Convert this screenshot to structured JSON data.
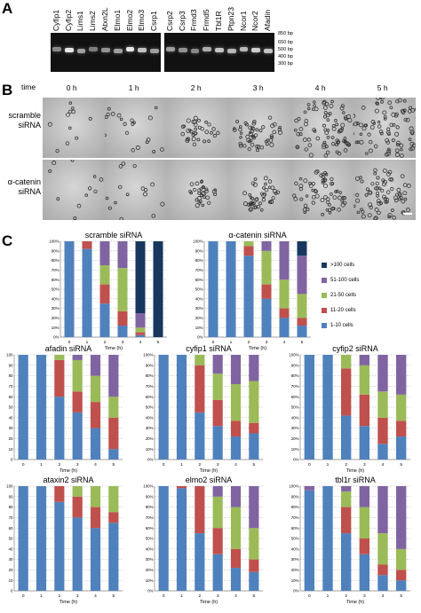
{
  "panels": {
    "a": "A",
    "b": "B",
    "c": "C"
  },
  "gel": {
    "lanes_left": [
      "Cyfip1",
      "Cyfip2",
      "Lims1",
      "Lims2",
      "Atxn2L",
      "Elmo1",
      "Elmo2",
      "Elmo3",
      "Csrp1"
    ],
    "lanes_right": [
      "Csrp2",
      "Csrp3",
      "Frmd3",
      "Frmd5",
      "Tbl1R",
      "Ptpn23",
      "Ncor1",
      "Ncor2",
      "Afadin"
    ],
    "band_intensity_left": [
      0.5,
      0.9,
      0.6,
      0.45,
      0.55,
      0.6,
      0.9,
      0.75,
      0.6
    ],
    "band_intensity_right": [
      0.6,
      0.55,
      0.5,
      0.65,
      0.75,
      0.7,
      0.7,
      0.8,
      0.75
    ],
    "markers": [
      "850 bp",
      "650 bp",
      "500 bp",
      "400 bp",
      "300 bp"
    ]
  },
  "timecourse": {
    "time_header": "time",
    "times": [
      "0 h",
      "1 h",
      "2 h",
      "3 h",
      "4 h",
      "5 h"
    ],
    "rows": [
      {
        "label_line1": "scramble",
        "label_line2": "siRNA",
        "growth": [
          0.05,
          0.15,
          0.3,
          0.5,
          0.85,
          1.0
        ]
      },
      {
        "label_line1": "α-catenin",
        "label_line2": "siRNA",
        "growth": [
          0.05,
          0.1,
          0.25,
          0.4,
          0.6,
          0.75
        ]
      }
    ]
  },
  "legend": {
    "items": [
      {
        "label": ">100 cells",
        "color": "#17375e"
      },
      {
        "label": "51-100 cells",
        "color": "#8064a2"
      },
      {
        "label": "21-50 cells",
        "color": "#9bbb59"
      },
      {
        "label": "11-20 cells",
        "color": "#c0504d"
      },
      {
        "label": "1-10 cells",
        "color": "#4f81bd"
      }
    ]
  },
  "chart_data": [
    {
      "type": "bar",
      "stacked": true,
      "title": "scramble siRNA",
      "xlabel": "Time (h)",
      "categories": [
        "0",
        "1",
        "2",
        "3",
        "4",
        "5"
      ],
      "ylim": [
        0,
        100
      ],
      "yticks": [
        "0%",
        "10%",
        "20%",
        "30%",
        "40%",
        "50%",
        "60%",
        "70%",
        "80%",
        "90%",
        "100%"
      ],
      "series": [
        {
          "name": "1-10 cells",
          "values": [
            100,
            92,
            35,
            12,
            2,
            0
          ]
        },
        {
          "name": "11-20 cells",
          "values": [
            0,
            8,
            20,
            15,
            3,
            0
          ]
        },
        {
          "name": "21-50 cells",
          "values": [
            0,
            0,
            20,
            45,
            5,
            0
          ]
        },
        {
          "name": "51-100 cells",
          "values": [
            0,
            0,
            25,
            28,
            15,
            0
          ]
        },
        {
          "name": ">100 cells",
          "values": [
            0,
            0,
            0,
            0,
            75,
            100
          ]
        }
      ]
    },
    {
      "type": "bar",
      "stacked": true,
      "title": "α-catenin siRNA",
      "xlabel": "Time (h)",
      "categories": [
        "0",
        "1",
        "2",
        "3",
        "4",
        "5"
      ],
      "ylim": [
        0,
        100
      ],
      "yticks": [
        "0%",
        "10%",
        "20%",
        "30%",
        "40%",
        "50%",
        "60%",
        "70%",
        "80%",
        "90%",
        "100%"
      ],
      "series": [
        {
          "name": "1-10 cells",
          "values": [
            100,
            100,
            85,
            40,
            20,
            12
          ]
        },
        {
          "name": "11-20 cells",
          "values": [
            0,
            0,
            10,
            15,
            10,
            8
          ]
        },
        {
          "name": "21-50 cells",
          "values": [
            0,
            0,
            5,
            35,
            30,
            25
          ]
        },
        {
          "name": "51-100 cells",
          "values": [
            0,
            0,
            0,
            10,
            40,
            40
          ]
        },
        {
          "name": ">100 cells",
          "values": [
            0,
            0,
            0,
            0,
            0,
            15
          ]
        }
      ]
    },
    {
      "type": "bar",
      "stacked": true,
      "title": "afadin siRNA",
      "xlabel": "Time (h)",
      "categories": [
        "0",
        "1",
        "2",
        "3",
        "4",
        "5"
      ],
      "ylim": [
        0,
        100
      ],
      "yticks": [
        "0",
        "10",
        "20",
        "30",
        "40",
        "50",
        "60",
        "70",
        "80",
        "90",
        "100"
      ],
      "series": [
        {
          "name": "1-10 cells",
          "values": [
            100,
            100,
            60,
            45,
            30,
            10
          ]
        },
        {
          "name": "11-20 cells",
          "values": [
            0,
            0,
            35,
            20,
            25,
            30
          ]
        },
        {
          "name": "21-50 cells",
          "values": [
            0,
            0,
            5,
            30,
            25,
            20
          ]
        },
        {
          "name": "51-100 cells",
          "values": [
            0,
            0,
            0,
            5,
            20,
            40
          ]
        },
        {
          "name": ">100 cells",
          "values": [
            0,
            0,
            0,
            0,
            0,
            0
          ]
        }
      ]
    },
    {
      "type": "bar",
      "stacked": true,
      "title": "cyfip1 siRNA",
      "xlabel": "Time (h)",
      "categories": [
        "0",
        "1",
        "2",
        "3",
        "4",
        "5"
      ],
      "ylim": [
        0,
        100
      ],
      "yticks": [
        "0%",
        "10%",
        "20%",
        "30%",
        "40%",
        "50%",
        "60%",
        "70%",
        "80%",
        "90%",
        "100%"
      ],
      "series": [
        {
          "name": "1-10 cells",
          "values": [
            100,
            100,
            45,
            32,
            22,
            25
          ]
        },
        {
          "name": "11-20 cells",
          "values": [
            0,
            0,
            45,
            25,
            15,
            10
          ]
        },
        {
          "name": "21-50 cells",
          "values": [
            0,
            0,
            10,
            25,
            35,
            40
          ]
        },
        {
          "name": "51-100 cells",
          "values": [
            0,
            0,
            0,
            18,
            28,
            25
          ]
        },
        {
          "name": ">100 cells",
          "values": [
            0,
            0,
            0,
            0,
            0,
            0
          ]
        }
      ]
    },
    {
      "type": "bar",
      "stacked": true,
      "title": "cyfip2 siRNA",
      "xlabel": "Time (h)",
      "categories": [
        "0",
        "1",
        "2",
        "3",
        "4",
        "5"
      ],
      "ylim": [
        0,
        100
      ],
      "yticks": [
        "0%",
        "10%",
        "20%",
        "30%",
        "40%",
        "50%",
        "60%",
        "70%",
        "80%",
        "90%",
        "100%"
      ],
      "series": [
        {
          "name": "1-10 cells",
          "values": [
            100,
            100,
            42,
            32,
            15,
            22
          ]
        },
        {
          "name": "11-20 cells",
          "values": [
            0,
            0,
            45,
            30,
            25,
            15
          ]
        },
        {
          "name": "21-50 cells",
          "values": [
            0,
            0,
            13,
            28,
            25,
            25
          ]
        },
        {
          "name": "51-100 cells",
          "values": [
            0,
            0,
            0,
            10,
            35,
            38
          ]
        },
        {
          "name": ">100 cells",
          "values": [
            0,
            0,
            0,
            0,
            0,
            0
          ]
        }
      ]
    },
    {
      "type": "bar",
      "stacked": true,
      "title": "ataxin2 siRNA",
      "xlabel": "Time (h)",
      "categories": [
        "0",
        "1",
        "2",
        "3",
        "4",
        "5"
      ],
      "ylim": [
        0,
        100
      ],
      "yticks": [
        "0",
        "10",
        "20",
        "30",
        "40",
        "50",
        "60",
        "70",
        "80",
        "90",
        "100"
      ],
      "series": [
        {
          "name": "1-10 cells",
          "values": [
            100,
            100,
            85,
            70,
            60,
            65
          ]
        },
        {
          "name": "11-20 cells",
          "values": [
            0,
            0,
            15,
            20,
            20,
            10
          ]
        },
        {
          "name": "21-50 cells",
          "values": [
            0,
            0,
            0,
            10,
            20,
            25
          ]
        },
        {
          "name": "51-100 cells",
          "values": [
            0,
            0,
            0,
            0,
            0,
            0
          ]
        },
        {
          "name": ">100 cells",
          "values": [
            0,
            0,
            0,
            0,
            0,
            0
          ]
        }
      ]
    },
    {
      "type": "bar",
      "stacked": true,
      "title": "elmo2 siRNA",
      "xlabel": "Time (h)",
      "categories": [
        "0",
        "1",
        "2",
        "3",
        "4",
        "5"
      ],
      "ylim": [
        0,
        100
      ],
      "yticks": [
        "0%",
        "10%",
        "20%",
        "30%",
        "40%",
        "50%",
        "60%",
        "70%",
        "80%",
        "90%",
        "100%"
      ],
      "series": [
        {
          "name": "1-10 cells",
          "values": [
            100,
            98,
            55,
            35,
            22,
            18
          ]
        },
        {
          "name": "11-20 cells",
          "values": [
            0,
            2,
            45,
            25,
            18,
            12
          ]
        },
        {
          "name": "21-50 cells",
          "values": [
            0,
            0,
            0,
            30,
            40,
            30
          ]
        },
        {
          "name": "51-100 cells",
          "values": [
            0,
            0,
            0,
            10,
            20,
            40
          ]
        },
        {
          "name": ">100 cells",
          "values": [
            0,
            0,
            0,
            0,
            0,
            0
          ]
        }
      ]
    },
    {
      "type": "bar",
      "stacked": true,
      "title": "tbl1r siRNA",
      "xlabel": "Time (h)",
      "categories": [
        "0",
        "1",
        "2",
        "3",
        "4",
        "5"
      ],
      "ylim": [
        0,
        100
      ],
      "yticks": [
        "0%",
        "10%",
        "20%",
        "30%",
        "40%",
        "50%",
        "60%",
        "70%",
        "80%",
        "90%",
        "100%"
      ],
      "series": [
        {
          "name": "1-10 cells",
          "values": [
            96,
            100,
            55,
            35,
            15,
            10
          ]
        },
        {
          "name": "11-20 cells",
          "values": [
            0,
            0,
            25,
            15,
            10,
            10
          ]
        },
        {
          "name": "21-50 cells",
          "values": [
            0,
            0,
            15,
            30,
            30,
            20
          ]
        },
        {
          "name": "51-100 cells",
          "values": [
            4,
            0,
            5,
            20,
            45,
            60
          ]
        },
        {
          "name": ">100 cells",
          "values": [
            0,
            0,
            0,
            0,
            0,
            0
          ]
        }
      ]
    }
  ]
}
